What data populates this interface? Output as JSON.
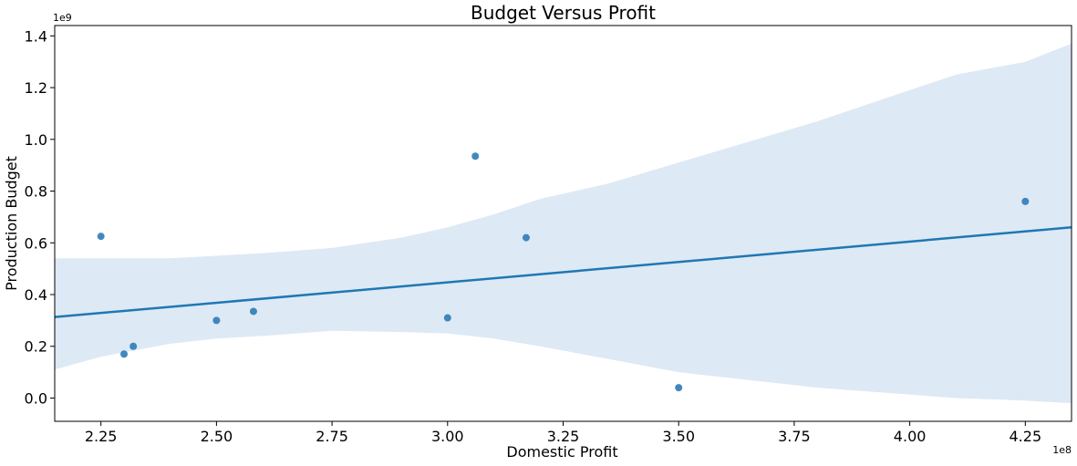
{
  "chart_data": {
    "type": "scatter",
    "title": "Budget Versus Profit",
    "xlabel": "Domestic Profit",
    "ylabel": "Production Budget",
    "x_offset_label": "1e8",
    "y_offset_label": "1e9",
    "xlim": [
      2.15,
      4.35
    ],
    "ylim": [
      -0.09,
      1.44
    ],
    "x_ticks": [
      2.25,
      2.5,
      2.75,
      3.0,
      3.25,
      3.5,
      3.75,
      4.0,
      4.25
    ],
    "x_tick_labels": [
      "2.25",
      "2.50",
      "2.75",
      "3.00",
      "3.25",
      "3.50",
      "3.75",
      "4.00",
      "4.25"
    ],
    "y_ticks": [
      0.0,
      0.2,
      0.4,
      0.6,
      0.8,
      1.0,
      1.2,
      1.4
    ],
    "y_tick_labels": [
      "0.0",
      "0.2",
      "0.4",
      "0.6",
      "0.8",
      "1.0",
      "1.2",
      "1.4"
    ],
    "grid": false,
    "points": [
      {
        "x": 2.25,
        "y": 0.625
      },
      {
        "x": 2.3,
        "y": 0.17
      },
      {
        "x": 2.32,
        "y": 0.2
      },
      {
        "x": 2.5,
        "y": 0.3
      },
      {
        "x": 2.58,
        "y": 0.335
      },
      {
        "x": 3.0,
        "y": 0.31
      },
      {
        "x": 3.06,
        "y": 0.935
      },
      {
        "x": 3.17,
        "y": 0.62
      },
      {
        "x": 3.5,
        "y": 0.04
      },
      {
        "x": 4.25,
        "y": 0.76
      }
    ],
    "regression_line": {
      "x": [
        2.15,
        4.35
      ],
      "y": [
        0.313,
        0.66
      ]
    },
    "confidence_band": {
      "x": [
        2.15,
        2.25,
        2.4,
        2.5,
        2.6,
        2.75,
        2.9,
        3.0,
        3.1,
        3.2,
        3.35,
        3.5,
        3.65,
        3.8,
        3.95,
        4.1,
        4.25,
        4.35
      ],
      "upper": [
        0.54,
        0.54,
        0.54,
        0.55,
        0.56,
        0.58,
        0.62,
        0.66,
        0.71,
        0.77,
        0.83,
        0.91,
        0.99,
        1.07,
        1.16,
        1.25,
        1.3,
        1.37
      ],
      "lower": [
        0.11,
        0.16,
        0.21,
        0.23,
        0.24,
        0.26,
        0.255,
        0.25,
        0.23,
        0.2,
        0.15,
        0.1,
        0.07,
        0.04,
        0.02,
        0.0,
        -0.01,
        -0.02
      ]
    },
    "colors": {
      "points": "#2d7bb6",
      "line": "#1f77b4",
      "band": "#c6dbef"
    }
  }
}
